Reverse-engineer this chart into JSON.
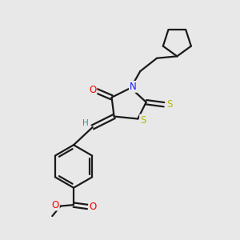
{
  "bg_color": "#e8e8e8",
  "bond_color": "#1a1a1a",
  "bond_width": 1.6,
  "atom_colors": {
    "N": "#2020ff",
    "O": "#ff0000",
    "S": "#b8b800",
    "H": "#00aaaa"
  },
  "font_size": 8.5,
  "font_size_H": 7.5
}
